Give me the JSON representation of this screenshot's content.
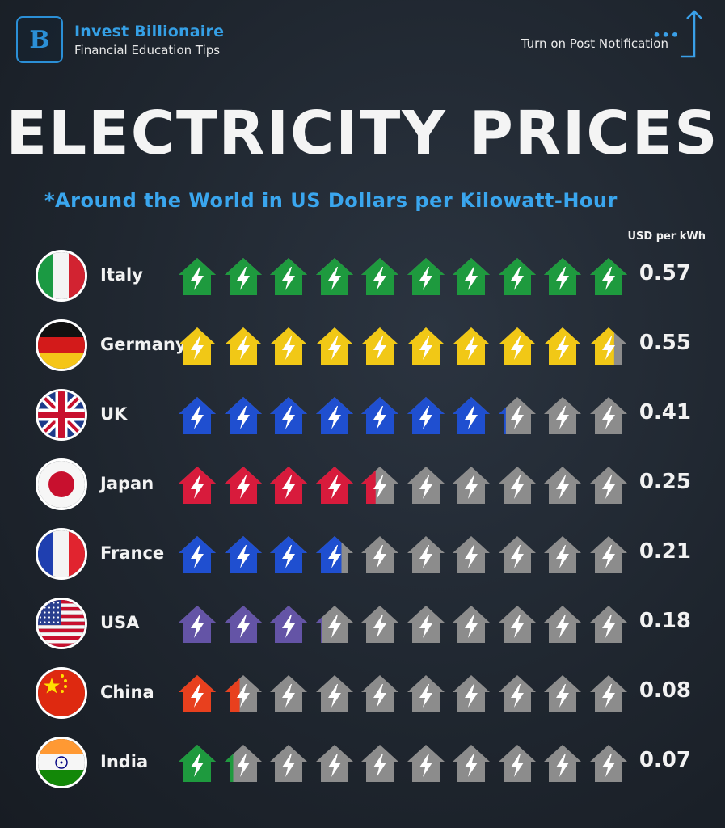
{
  "brand": {
    "name": "Invest Billionaire",
    "tagline": "Financial Education Tips",
    "logo_letter": "B"
  },
  "notification": {
    "text": "Turn on Post Notification",
    "dots": "•••"
  },
  "title": "ELECTRICITY PRICES",
  "subtitle": "*Around the World in US Dollars per Kilowatt-Hour",
  "unit_label": "USD per kWh",
  "colors": {
    "empty_house": "#8c8c8c",
    "accent_blue": "#3aa6ee"
  },
  "chart_data": {
    "type": "bar",
    "ylabel": "USD per kWh",
    "unit_value_per_icon": 0.057,
    "icons_per_row": 10,
    "categories": [
      "Italy",
      "Germany",
      "UK",
      "Japan",
      "France",
      "USA",
      "China",
      "India"
    ],
    "values": [
      0.57,
      0.55,
      0.41,
      0.25,
      0.21,
      0.18,
      0.08,
      0.07
    ],
    "value_labels": [
      "0.57",
      "0.55",
      "0.41",
      "0.25",
      "0.21",
      "0.18",
      "0.08",
      "0.07"
    ],
    "colors": [
      "#1e9a3e",
      "#f1c816",
      "#1f4fd0",
      "#d81b3c",
      "#1f4fd0",
      "#6454a6",
      "#e8401e",
      "#1e9a3e"
    ],
    "flag_icons": [
      "flag-italy",
      "flag-germany",
      "flag-uk",
      "flag-japan",
      "flag-france",
      "flag-usa",
      "flag-china",
      "flag-india"
    ]
  }
}
